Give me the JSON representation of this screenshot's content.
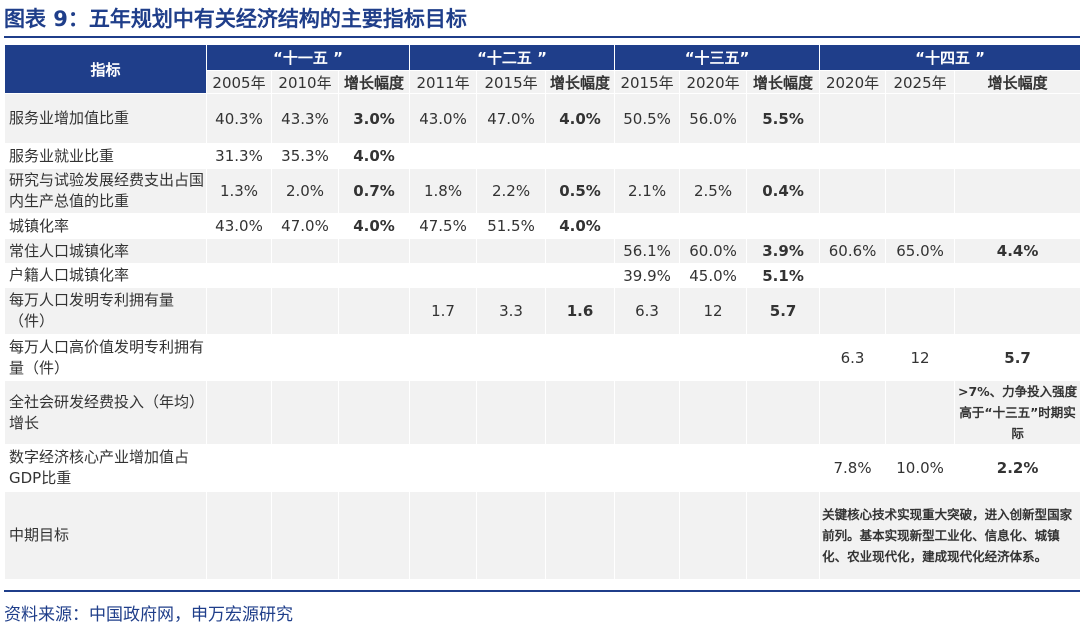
{
  "title": "图表 9：五年规划中有关经济结构的主要指标目标",
  "table": {
    "indicator_header": "指标",
    "plans": [
      "“十一五 ”",
      "“十二五 ”",
      "“十三五”",
      "“十四五 ”"
    ],
    "subheaders": [
      "2005年",
      "2010年",
      "增长幅度",
      "2011年",
      "2015年",
      "增长幅度",
      "2015年",
      "2020年",
      "增长幅度",
      "2020年",
      "2025年",
      "增长幅度"
    ],
    "rows": [
      {
        "label": "服务业增加值比重",
        "cells": [
          "40.3%",
          "43.3%",
          "3.0%",
          "43.0%",
          "47.0%",
          "4.0%",
          "50.5%",
          "56.0%",
          "5.5%",
          "",
          "",
          ""
        ]
      },
      {
        "label": "服务业就业比重",
        "cells": [
          "31.3%",
          "35.3%",
          "4.0%",
          "",
          "",
          "",
          "",
          "",
          "",
          "",
          "",
          ""
        ]
      },
      {
        "label": "研究与试验发展经费支出占国内生产总值的比重",
        "cells": [
          "1.3%",
          "2.0%",
          "0.7%",
          "1.8%",
          "2.2%",
          "0.5%",
          "2.1%",
          "2.5%",
          "0.4%",
          "",
          "",
          ""
        ]
      },
      {
        "label": "城镇化率",
        "cells": [
          "43.0%",
          "47.0%",
          "4.0%",
          "47.5%",
          "51.5%",
          "4.0%",
          "",
          "",
          "",
          "",
          "",
          ""
        ]
      },
      {
        "label": "常住人口城镇化率",
        "cells": [
          "",
          "",
          "",
          "",
          "",
          "",
          "56.1%",
          "60.0%",
          "3.9%",
          "60.6%",
          "65.0%",
          "4.4%"
        ]
      },
      {
        "label": "户籍人口城镇化率",
        "cells": [
          "",
          "",
          "",
          "",
          "",
          "",
          "39.9%",
          "45.0%",
          "5.1%",
          "",
          "",
          ""
        ]
      },
      {
        "label": "每万人口发明专利拥有量（件）",
        "cells": [
          "",
          "",
          "",
          "1.7",
          "3.3",
          "1.6",
          "6.3",
          "12",
          "5.7",
          "",
          "",
          ""
        ]
      },
      {
        "label": "每万人口高价值发明专利拥有量（件）",
        "cells": [
          "",
          "",
          "",
          "",
          "",
          "",
          "",
          "",
          "",
          "6.3",
          "12",
          "5.7"
        ]
      },
      {
        "label": "全社会研发经费投入（年均）增长",
        "note": ">7%、力争投入强度高于“十三五”时期实际"
      },
      {
        "label": "数字经济核心产业增加值占GDP比重",
        "cells": [
          "",
          "",
          "",
          "",
          "",
          "",
          "",
          "",
          "",
          "7.8%",
          "10.0%",
          "2.2%"
        ]
      },
      {
        "label": "中期目标",
        "goal": "关键核心技术实现重大突破，进入创新型国家前列。基本实现新型工业化、信息化、城镇化、农业现代化，建成现代化经济体系。"
      }
    ]
  },
  "source": "资料来源：中国政府网，申万宏源研究",
  "colors": {
    "accent": "#1f3e8a",
    "shade": "#f2f2f2"
  }
}
